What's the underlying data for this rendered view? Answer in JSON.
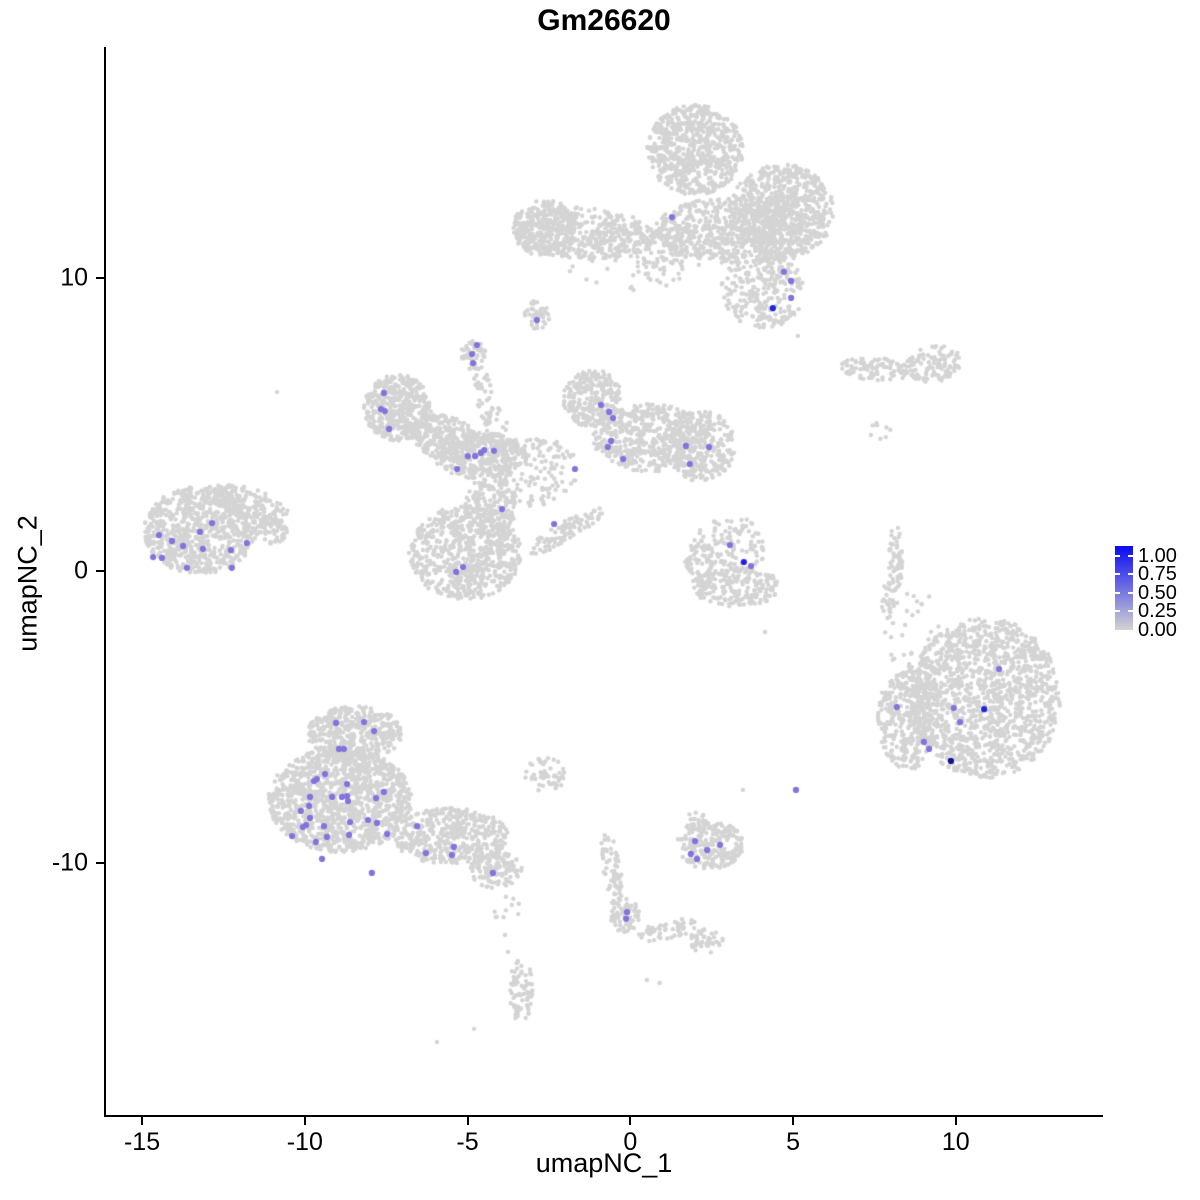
{
  "title": "Gm26620",
  "axes": {
    "x": {
      "label": "umapNC_1",
      "ticks": [
        -15,
        -10,
        -5,
        0,
        5,
        10
      ],
      "range": [
        -16.1,
        14.5
      ]
    },
    "y": {
      "label": "umapNC_2",
      "ticks": [
        10,
        0,
        -10
      ],
      "range": [
        -18.6,
        17.9
      ]
    }
  },
  "legend": {
    "labels": [
      "1.00",
      "0.75",
      "0.50",
      "0.25",
      "0.00"
    ],
    "values": [
      1.0,
      0.75,
      0.5,
      0.25,
      0.0
    ],
    "top_color": "#0a0af2",
    "bottom_color": "#d3d3d3"
  },
  "chart_data": {
    "type": "scatter",
    "title": "Gm26620",
    "xlabel": "umapNC_1",
    "ylabel": "umapNC_2",
    "xlim": [
      -16.1,
      14.5
    ],
    "ylim": [
      -18.6,
      17.9
    ],
    "grid": false,
    "legend_position": "right",
    "description": "UMAP feature plot of gene Gm26620 expression; dense light-grey cell clusters with sparse purple-to-blue expressing cells (colour scale 0.00 - 1.00).",
    "palette": {
      "background": "#d4d4d4",
      "m": "#8273de",
      "b": "#2323dd",
      "n": "#12129b"
    },
    "point_radius": {
      "background": 2.2,
      "expressing": 3.1
    },
    "background_clusters": [
      {
        "cx": 1.99,
        "cy": 14.38,
        "rx": 1.47,
        "ry": 1.54,
        "rot": 0,
        "n": 700
      },
      {
        "cx": 4.66,
        "cy": 12.26,
        "rx": 1.6,
        "ry": 1.64,
        "rot": 0,
        "n": 700
      },
      {
        "cx": 3.22,
        "cy": 11.64,
        "rx": 2.46,
        "ry": 1.13,
        "rot": 0,
        "n": 600
      },
      {
        "cx": 4.08,
        "cy": 9.59,
        "rx": 1.29,
        "ry": 1.3,
        "rot": 0,
        "n": 260
      },
      {
        "cx": -1.39,
        "cy": 11.54,
        "rx": 2.15,
        "ry": 0.89,
        "rot": -4,
        "n": 380
      },
      {
        "cx": -2.62,
        "cy": 11.71,
        "rx": 1.01,
        "ry": 0.96,
        "rot": 0,
        "n": 260
      },
      {
        "cx": 0.91,
        "cy": 10.85,
        "rx": 1.47,
        "ry": 0.96,
        "rot": 0,
        "n": 90
      },
      {
        "cx": 0.0,
        "cy": 10.6,
        "rx": 2.3,
        "ry": 1.1,
        "rot": 0,
        "n": 45
      },
      {
        "cx": -2.87,
        "cy": 8.74,
        "rx": 0.4,
        "ry": 0.55,
        "rot": 0,
        "n": 40
      },
      {
        "cx": -4.83,
        "cy": 7.37,
        "rx": 0.43,
        "ry": 0.55,
        "rot": 0,
        "n": 45
      },
      {
        "cx": -4.49,
        "cy": 6.0,
        "rx": 0.28,
        "ry": 1.03,
        "rot": 8,
        "n": 35
      },
      {
        "cx": -4.15,
        "cy": 4.95,
        "rx": 0.37,
        "ry": 0.68,
        "rot": 0,
        "n": 18
      },
      {
        "cx": -7.14,
        "cy": 5.56,
        "rx": 1.04,
        "ry": 1.13,
        "rot": 0,
        "n": 420
      },
      {
        "cx": -5.69,
        "cy": 4.53,
        "rx": 1.11,
        "ry": 0.75,
        "rot": -25,
        "n": 250
      },
      {
        "cx": -4.62,
        "cy": 3.95,
        "rx": 1.41,
        "ry": 0.82,
        "rot": 0,
        "n": 350
      },
      {
        "cx": -3.02,
        "cy": 3.44,
        "rx": 1.41,
        "ry": 1.23,
        "rot": 0,
        "n": 160
      },
      {
        "cx": -1.18,
        "cy": 5.9,
        "rx": 0.92,
        "ry": 0.99,
        "rot": 0,
        "n": 260
      },
      {
        "cx": 0.61,
        "cy": 4.53,
        "rx": 1.78,
        "ry": 1.16,
        "rot": 0,
        "n": 500
      },
      {
        "cx": 2.2,
        "cy": 4.26,
        "rx": 1.01,
        "ry": 1.23,
        "rot": 0,
        "n": 280
      },
      {
        "cx": -5.08,
        "cy": 0.6,
        "rx": 1.72,
        "ry": 1.61,
        "rot": 0,
        "n": 700
      },
      {
        "cx": -4.31,
        "cy": 2.17,
        "rx": 0.8,
        "ry": 1.03,
        "rot": 0,
        "n": 160
      },
      {
        "cx": -2.01,
        "cy": 1.32,
        "rx": 1.41,
        "ry": 0.31,
        "rot": 33,
        "n": 90
      },
      {
        "cx": 3.06,
        "cy": 0.84,
        "rx": 1.11,
        "ry": 1.03,
        "rot": 0,
        "n": 120
      },
      {
        "cx": 3.28,
        "cy": -0.56,
        "rx": 1.35,
        "ry": 0.68,
        "rot": 0,
        "n": 200
      },
      {
        "cx": 2.14,
        "cy": 0.19,
        "rx": 0.46,
        "ry": 0.85,
        "rot": 0,
        "n": 60
      },
      {
        "cx": -13.22,
        "cy": 1.38,
        "rx": 1.72,
        "ry": 1.5,
        "rot": 0,
        "n": 750
      },
      {
        "cx": -11.68,
        "cy": 2.24,
        "rx": 1.29,
        "ry": 0.55,
        "rot": -22,
        "n": 150
      },
      {
        "cx": -11.07,
        "cy": 1.32,
        "rx": 0.55,
        "ry": 0.41,
        "rot": 0,
        "n": 60
      },
      {
        "cx": 7.49,
        "cy": 6.89,
        "rx": 1.04,
        "ry": 0.41,
        "rot": -8,
        "n": 90
      },
      {
        "cx": 9.3,
        "cy": 7.06,
        "rx": 0.92,
        "ry": 0.62,
        "rot": 8,
        "n": 110
      },
      {
        "cx": 7.67,
        "cy": 4.74,
        "rx": 0.4,
        "ry": 0.4,
        "rot": 0,
        "n": 6
      },
      {
        "cx": 8.13,
        "cy": 0.36,
        "rx": 0.25,
        "ry": 1.2,
        "rot": 0,
        "n": 60
      },
      {
        "cx": 7.92,
        "cy": -1.01,
        "rx": 0.22,
        "ry": 0.62,
        "rot": 0,
        "n": 25
      },
      {
        "cx": 10.9,
        "cy": -4.36,
        "rx": 2.33,
        "ry": 2.74,
        "rot": 0,
        "n": 1400
      },
      {
        "cx": 8.53,
        "cy": -5.04,
        "rx": 0.92,
        "ry": 1.78,
        "rot": 0,
        "n": 350
      },
      {
        "cx": 8.75,
        "cy": -2.38,
        "rx": 1.08,
        "ry": 1.71,
        "rot": 0,
        "n": 35
      },
      {
        "cx": -8.46,
        "cy": -5.56,
        "rx": 1.47,
        "ry": 0.92,
        "rot": 0,
        "n": 420
      },
      {
        "cx": -8.92,
        "cy": -7.85,
        "rx": 2.21,
        "ry": 1.78,
        "rot": 0,
        "n": 1200
      },
      {
        "cx": -5.54,
        "cy": -9.08,
        "rx": 1.78,
        "ry": 0.96,
        "rot": 0,
        "n": 450
      },
      {
        "cx": -4.13,
        "cy": -10.24,
        "rx": 0.8,
        "ry": 0.62,
        "rot": 0,
        "n": 130
      },
      {
        "cx": -2.62,
        "cy": -6.99,
        "rx": 0.61,
        "ry": 0.61,
        "rot": 0,
        "n": 50
      },
      {
        "cx": -3.85,
        "cy": -11.68,
        "rx": 0.55,
        "ry": 0.55,
        "rot": 0,
        "n": 10
      },
      {
        "cx": 2.45,
        "cy": -9.38,
        "rx": 1.01,
        "ry": 0.85,
        "rot": 0,
        "n": 220
      },
      {
        "cx": 1.99,
        "cy": -8.6,
        "rx": 0.37,
        "ry": 0.34,
        "rot": 0,
        "n": 25
      },
      {
        "cx": -0.56,
        "cy": -10.31,
        "rx": 0.28,
        "ry": 1.44,
        "rot": 8,
        "n": 70
      },
      {
        "cx": -0.16,
        "cy": -11.81,
        "rx": 0.46,
        "ry": 0.58,
        "rot": 0,
        "n": 60
      },
      {
        "cx": 1.16,
        "cy": -12.29,
        "rx": 0.98,
        "ry": 0.31,
        "rot": 15,
        "n": 50
      },
      {
        "cx": 2.33,
        "cy": -12.67,
        "rx": 0.52,
        "ry": 0.41,
        "rot": 0,
        "n": 45
      },
      {
        "cx": -3.36,
        "cy": -14.34,
        "rx": 0.37,
        "ry": 1.09,
        "rot": 0,
        "n": 70
      }
    ],
    "background_singletons": [
      [
        5.15,
        8.02
      ],
      [
        7.58,
        4.97
      ],
      [
        7.85,
        4.56
      ],
      [
        4.14,
        -2.1
      ],
      [
        8.07,
        -1.8
      ],
      [
        3.46,
        -7.5
      ],
      [
        -3.76,
        -13.04
      ],
      [
        -3.85,
        -12.46
      ],
      [
        -4.8,
        -15.67
      ],
      [
        -5.94,
        -16.12
      ],
      [
        0.51,
        -14.0
      ],
      [
        0.9,
        -14.1
      ],
      [
        -10.85,
        6.1
      ]
    ],
    "expressing_cells": [
      {
        "x": 1.28,
        "y": 12.08,
        "v": "m"
      },
      {
        "x": 4.72,
        "y": 10.21,
        "v": "m"
      },
      {
        "x": 4.94,
        "y": 9.9,
        "v": "m"
      },
      {
        "x": 4.94,
        "y": 9.32,
        "v": "m"
      },
      {
        "x": 4.38,
        "y": 8.97,
        "v": "b"
      },
      {
        "x": -2.87,
        "y": 8.56,
        "v": "m"
      },
      {
        "x": -4.71,
        "y": 7.71,
        "v": "m"
      },
      {
        "x": -4.86,
        "y": 7.4,
        "v": "m"
      },
      {
        "x": -4.83,
        "y": 7.09,
        "v": "m"
      },
      {
        "x": -7.57,
        "y": 6.07,
        "v": "m"
      },
      {
        "x": -7.66,
        "y": 5.52,
        "v": "m"
      },
      {
        "x": -7.54,
        "y": 5.45,
        "v": "m"
      },
      {
        "x": -7.41,
        "y": 4.84,
        "v": "m"
      },
      {
        "x": -4.99,
        "y": 3.91,
        "v": "m"
      },
      {
        "x": -4.77,
        "y": 3.91,
        "v": "m"
      },
      {
        "x": -4.59,
        "y": 4.02,
        "v": "m"
      },
      {
        "x": -4.49,
        "y": 4.12,
        "v": "m"
      },
      {
        "x": -4.19,
        "y": 4.09,
        "v": "m"
      },
      {
        "x": -5.32,
        "y": 3.47,
        "v": "m"
      },
      {
        "x": -0.9,
        "y": 5.66,
        "v": "m"
      },
      {
        "x": -0.65,
        "y": 5.42,
        "v": "m"
      },
      {
        "x": -0.53,
        "y": 5.21,
        "v": "m"
      },
      {
        "x": -0.59,
        "y": 4.43,
        "v": "m"
      },
      {
        "x": -0.69,
        "y": 4.22,
        "v": "m"
      },
      {
        "x": -0.22,
        "y": 3.81,
        "v": "m"
      },
      {
        "x": -1.7,
        "y": 3.47,
        "v": "m"
      },
      {
        "x": 1.71,
        "y": 4.26,
        "v": "m"
      },
      {
        "x": 2.42,
        "y": 4.22,
        "v": "m"
      },
      {
        "x": 1.83,
        "y": 3.64,
        "v": "m"
      },
      {
        "x": -3.94,
        "y": 2.1,
        "v": "m"
      },
      {
        "x": -2.34,
        "y": 1.59,
        "v": "m"
      },
      {
        "x": -5.35,
        "y": -0.05,
        "v": "m"
      },
      {
        "x": -5.14,
        "y": 0.12,
        "v": "m"
      },
      {
        "x": 3.06,
        "y": 0.87,
        "v": "m"
      },
      {
        "x": 3.49,
        "y": 0.29,
        "v": "b"
      },
      {
        "x": 3.71,
        "y": 0.15,
        "v": "m"
      },
      {
        "x": -14.48,
        "y": 1.21,
        "v": "m"
      },
      {
        "x": -14.08,
        "y": 1.01,
        "v": "m"
      },
      {
        "x": -13.74,
        "y": 0.84,
        "v": "m"
      },
      {
        "x": -13.22,
        "y": 1.32,
        "v": "m"
      },
      {
        "x": -13.13,
        "y": 0.74,
        "v": "m"
      },
      {
        "x": -12.85,
        "y": 1.62,
        "v": "m"
      },
      {
        "x": -12.27,
        "y": 0.7,
        "v": "m"
      },
      {
        "x": -11.78,
        "y": 0.94,
        "v": "m"
      },
      {
        "x": -14.66,
        "y": 0.46,
        "v": "m"
      },
      {
        "x": -14.39,
        "y": 0.43,
        "v": "m"
      },
      {
        "x": -13.62,
        "y": 0.09,
        "v": "m"
      },
      {
        "x": -12.24,
        "y": 0.09,
        "v": "m"
      },
      {
        "x": 5.09,
        "y": -7.5,
        "v": "m"
      },
      {
        "x": 11.33,
        "y": -3.37,
        "v": "m"
      },
      {
        "x": 8.19,
        "y": -4.67,
        "v": "m"
      },
      {
        "x": 9.94,
        "y": -4.7,
        "v": "m"
      },
      {
        "x": 10.87,
        "y": -4.74,
        "v": "b"
      },
      {
        "x": 10.13,
        "y": -5.18,
        "v": "m"
      },
      {
        "x": 9.02,
        "y": -5.86,
        "v": "m"
      },
      {
        "x": 9.18,
        "y": -6.1,
        "v": "m"
      },
      {
        "x": 9.85,
        "y": -6.51,
        "v": "n"
      },
      {
        "x": -9.04,
        "y": -5.21,
        "v": "m"
      },
      {
        "x": -8.18,
        "y": -5.18,
        "v": "m"
      },
      {
        "x": -7.87,
        "y": -5.49,
        "v": "m"
      },
      {
        "x": -8.95,
        "y": -6.1,
        "v": "m"
      },
      {
        "x": -8.8,
        "y": -6.1,
        "v": "m"
      },
      {
        "x": -9.38,
        "y": -6.96,
        "v": "m"
      },
      {
        "x": -9.63,
        "y": -7.13,
        "v": "m"
      },
      {
        "x": -9.72,
        "y": -7.2,
        "v": "m"
      },
      {
        "x": -8.7,
        "y": -7.3,
        "v": "m"
      },
      {
        "x": -7.57,
        "y": -7.57,
        "v": "m"
      },
      {
        "x": -7.81,
        "y": -7.78,
        "v": "m"
      },
      {
        "x": -9.16,
        "y": -7.74,
        "v": "m"
      },
      {
        "x": -8.86,
        "y": -7.74,
        "v": "m"
      },
      {
        "x": -8.7,
        "y": -7.71,
        "v": "m"
      },
      {
        "x": -8.67,
        "y": -7.88,
        "v": "m"
      },
      {
        "x": -9.84,
        "y": -7.74,
        "v": "m"
      },
      {
        "x": -9.87,
        "y": -8.05,
        "v": "m"
      },
      {
        "x": -10.12,
        "y": -8.22,
        "v": "m"
      },
      {
        "x": -9.84,
        "y": -8.46,
        "v": "m"
      },
      {
        "x": -9.96,
        "y": -8.7,
        "v": "m"
      },
      {
        "x": -10.06,
        "y": -8.77,
        "v": "m"
      },
      {
        "x": -9.41,
        "y": -8.74,
        "v": "m"
      },
      {
        "x": -10.39,
        "y": -9.08,
        "v": "m"
      },
      {
        "x": -9.66,
        "y": -9.28,
        "v": "m"
      },
      {
        "x": -9.32,
        "y": -9.11,
        "v": "m"
      },
      {
        "x": -8.61,
        "y": -8.6,
        "v": "m"
      },
      {
        "x": -8.64,
        "y": -9.04,
        "v": "m"
      },
      {
        "x": -8.06,
        "y": -8.53,
        "v": "m"
      },
      {
        "x": -7.78,
        "y": -8.63,
        "v": "m"
      },
      {
        "x": -7.47,
        "y": -9.01,
        "v": "m"
      },
      {
        "x": -6.55,
        "y": -8.74,
        "v": "m"
      },
      {
        "x": -6.28,
        "y": -9.66,
        "v": "m"
      },
      {
        "x": -5.42,
        "y": -9.45,
        "v": "m"
      },
      {
        "x": -5.48,
        "y": -9.73,
        "v": "m"
      },
      {
        "x": -4.22,
        "y": -10.34,
        "v": "m"
      },
      {
        "x": -9.47,
        "y": -9.86,
        "v": "m"
      },
      {
        "x": -7.94,
        "y": -10.34,
        "v": "m"
      },
      {
        "x": 1.99,
        "y": -9.25,
        "v": "m"
      },
      {
        "x": 2.36,
        "y": -9.56,
        "v": "m"
      },
      {
        "x": 2.76,
        "y": -9.38,
        "v": "m"
      },
      {
        "x": 1.86,
        "y": -9.69,
        "v": "m"
      },
      {
        "x": 2.05,
        "y": -9.86,
        "v": "m"
      },
      {
        "x": -0.1,
        "y": -11.68,
        "v": "m"
      },
      {
        "x": -0.13,
        "y": -11.91,
        "v": "m"
      }
    ]
  }
}
